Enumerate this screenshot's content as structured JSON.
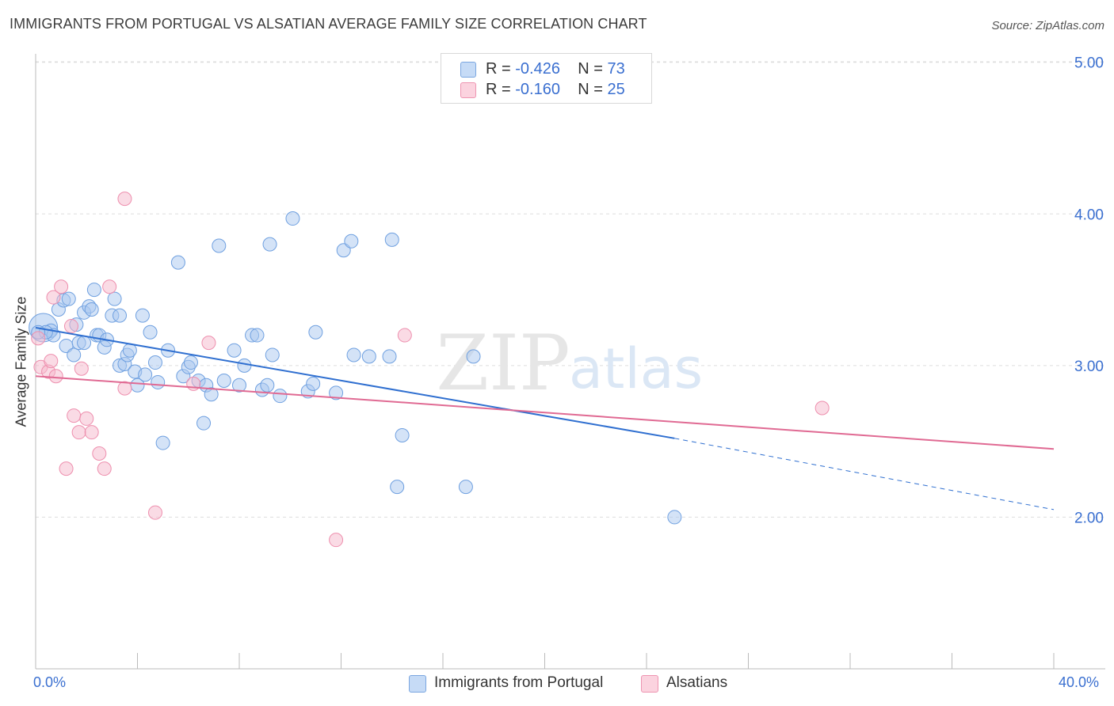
{
  "title": "IMMIGRANTS FROM PORTUGAL VS ALSATIAN AVERAGE FAMILY SIZE CORRELATION CHART",
  "source": "Source: ZipAtlas.com",
  "watermark": {
    "zip": "ZIP",
    "atlas": "atlas"
  },
  "stats": [
    {
      "r_label": "R = ",
      "r_value": "-0.426",
      "n_label": "N = ",
      "n_value": "73",
      "color": "#a9c8f0"
    },
    {
      "r_label": "R = ",
      "r_value": "-0.160",
      "n_label": "N = ",
      "n_value": "25",
      "color": "#f6b8cb"
    }
  ],
  "legend": [
    {
      "label": "Immigrants from Portugal",
      "color": "#a9c8f0"
    },
    {
      "label": "Alsatians",
      "color": "#f6b8cb"
    }
  ],
  "chart_data": {
    "type": "scatter",
    "ylabel": "Average Family Size",
    "xlim": [
      0,
      40
    ],
    "ylim": [
      1.0,
      5.15
    ],
    "x_tick_labels": [
      {
        "value": 0,
        "label": "0.0%"
      },
      {
        "value": 40,
        "label": "40.0%"
      }
    ],
    "y_ticks": [
      {
        "value": 2.0,
        "label": "2.00"
      },
      {
        "value": 3.0,
        "label": "3.00"
      },
      {
        "value": 4.0,
        "label": "4.00"
      },
      {
        "value": 5.0,
        "label": "5.00"
      }
    ],
    "grid": "horizontal dashed",
    "series": [
      {
        "name": "Immigrants from Portugal",
        "color": "#6fa0e0",
        "fill": "#a9c8f0",
        "trend": {
          "x0": 0,
          "y0": 3.25,
          "x1": 25.1,
          "y1": 2.52,
          "dash_to_x": 40,
          "dash_to_y": 2.05,
          "color": "#2f6fd0"
        },
        "points": [
          [
            0.3,
            3.25
          ],
          [
            0.6,
            3.23
          ],
          [
            0.7,
            3.2
          ],
          [
            0.4,
            3.22
          ],
          [
            0.9,
            3.37
          ],
          [
            1.1,
            3.43
          ],
          [
            1.3,
            3.44
          ],
          [
            1.2,
            3.13
          ],
          [
            1.5,
            3.07
          ],
          [
            1.6,
            3.27
          ],
          [
            1.7,
            3.15
          ],
          [
            1.9,
            3.15
          ],
          [
            1.9,
            3.35
          ],
          [
            2.1,
            3.39
          ],
          [
            2.2,
            3.37
          ],
          [
            2.3,
            3.5
          ],
          [
            2.4,
            3.2
          ],
          [
            2.5,
            3.2
          ],
          [
            2.7,
            3.12
          ],
          [
            2.8,
            3.17
          ],
          [
            3.0,
            3.33
          ],
          [
            3.1,
            3.44
          ],
          [
            3.3,
            3.33
          ],
          [
            3.3,
            3.0
          ],
          [
            3.5,
            3.01
          ],
          [
            3.6,
            3.07
          ],
          [
            3.7,
            3.1
          ],
          [
            3.9,
            2.96
          ],
          [
            4.0,
            2.87
          ],
          [
            4.2,
            3.33
          ],
          [
            4.3,
            2.94
          ],
          [
            4.5,
            3.22
          ],
          [
            4.7,
            3.02
          ],
          [
            4.8,
            2.89
          ],
          [
            5.0,
            2.49
          ],
          [
            5.2,
            3.1
          ],
          [
            5.6,
            3.68
          ],
          [
            5.8,
            2.93
          ],
          [
            6.0,
            2.99
          ],
          [
            6.1,
            3.02
          ],
          [
            6.4,
            2.9
          ],
          [
            6.6,
            2.62
          ],
          [
            6.7,
            2.87
          ],
          [
            6.9,
            2.81
          ],
          [
            7.2,
            3.79
          ],
          [
            7.4,
            2.9
          ],
          [
            7.8,
            3.1
          ],
          [
            8.0,
            2.87
          ],
          [
            8.2,
            3.0
          ],
          [
            8.5,
            3.2
          ],
          [
            8.7,
            3.2
          ],
          [
            8.9,
            2.84
          ],
          [
            9.1,
            2.87
          ],
          [
            9.2,
            3.8
          ],
          [
            9.3,
            3.07
          ],
          [
            9.6,
            2.8
          ],
          [
            10.1,
            3.97
          ],
          [
            10.7,
            2.83
          ],
          [
            10.9,
            2.88
          ],
          [
            11.0,
            3.22
          ],
          [
            11.8,
            2.82
          ],
          [
            12.1,
            3.76
          ],
          [
            12.4,
            3.82
          ],
          [
            12.5,
            3.07
          ],
          [
            13.1,
            3.06
          ],
          [
            13.9,
            3.06
          ],
          [
            14.0,
            3.83
          ],
          [
            14.2,
            2.2
          ],
          [
            14.4,
            2.54
          ],
          [
            16.9,
            2.2
          ],
          [
            17.2,
            3.06
          ],
          [
            25.1,
            2.0
          ],
          [
            0.1,
            3.22
          ]
        ]
      },
      {
        "name": "Alsatians",
        "color": "#ee8fae",
        "fill": "#f6b8cb",
        "trend": {
          "x0": 0,
          "y0": 2.93,
          "x1": 40,
          "y1": 2.45,
          "color": "#e06a93"
        },
        "points": [
          [
            0.1,
            3.18
          ],
          [
            0.2,
            2.99
          ],
          [
            0.5,
            2.96
          ],
          [
            0.6,
            3.03
          ],
          [
            0.7,
            3.45
          ],
          [
            0.8,
            2.93
          ],
          [
            1.0,
            3.52
          ],
          [
            1.2,
            2.32
          ],
          [
            1.4,
            3.26
          ],
          [
            1.5,
            2.67
          ],
          [
            1.7,
            2.56
          ],
          [
            1.8,
            2.98
          ],
          [
            2.0,
            2.65
          ],
          [
            2.2,
            2.56
          ],
          [
            2.5,
            2.42
          ],
          [
            2.7,
            2.32
          ],
          [
            2.9,
            3.52
          ],
          [
            3.5,
            4.1
          ],
          [
            3.5,
            2.85
          ],
          [
            4.7,
            2.03
          ],
          [
            6.2,
            2.88
          ],
          [
            6.8,
            3.15
          ],
          [
            11.8,
            1.85
          ],
          [
            14.5,
            3.2
          ],
          [
            30.9,
            2.72
          ]
        ]
      }
    ]
  }
}
